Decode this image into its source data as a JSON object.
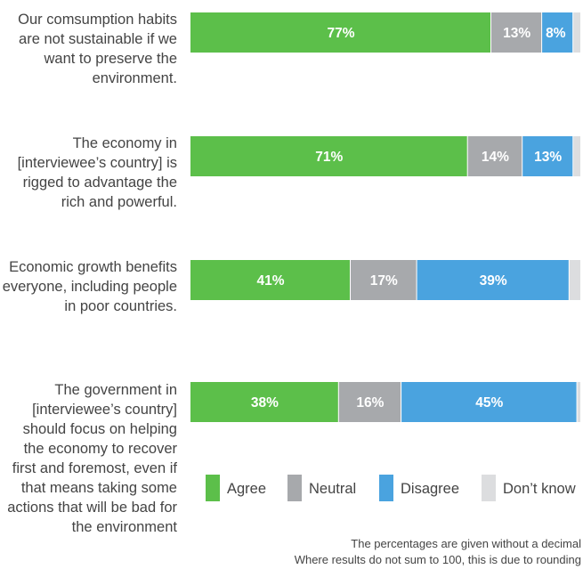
{
  "chart_data": {
    "type": "bar",
    "orientation": "horizontal",
    "stacked": true,
    "categories": [
      "Our comsumption habits are not sustainable if we want to preserve the environment.",
      "The economy in [interviewee’s country] is rigged to advantage the rich and powerful.",
      "Economic growth benefits everyone, including people in poor countries.",
      "The government in [interviewee’s country] should focus on helping the economy to recover first and foremost, even if that means taking some actions that will be bad for the environment"
    ],
    "series": [
      {
        "name": "Agree",
        "color": "#5cbf4a",
        "values": [
          77,
          71,
          41,
          38
        ]
      },
      {
        "name": "Neutral",
        "color": "#a7a9ac",
        "values": [
          13,
          14,
          17,
          16
        ]
      },
      {
        "name": "Disagree",
        "color": "#4aa3df",
        "values": [
          8,
          13,
          39,
          45
        ]
      },
      {
        "name": "Don’t know",
        "color": "#dcdddf",
        "values": [
          2,
          2,
          3,
          1
        ]
      }
    ],
    "data_labels": [
      [
        "77%",
        "13%",
        "8%",
        ""
      ],
      [
        "71%",
        "14%",
        "13%",
        ""
      ],
      [
        "41%",
        "17%",
        "39%",
        ""
      ],
      [
        "38%",
        "16%",
        "45%",
        ""
      ]
    ],
    "xlim": [
      0,
      100
    ],
    "grid": false,
    "legend_position": "bottom-right"
  },
  "legend": [
    "Agree",
    "Neutral",
    "Disagree",
    "Don’t know"
  ],
  "footnote": [
    "The percentages are given without a decimal",
    "Where results do not sum to 100, this is due to rounding"
  ]
}
